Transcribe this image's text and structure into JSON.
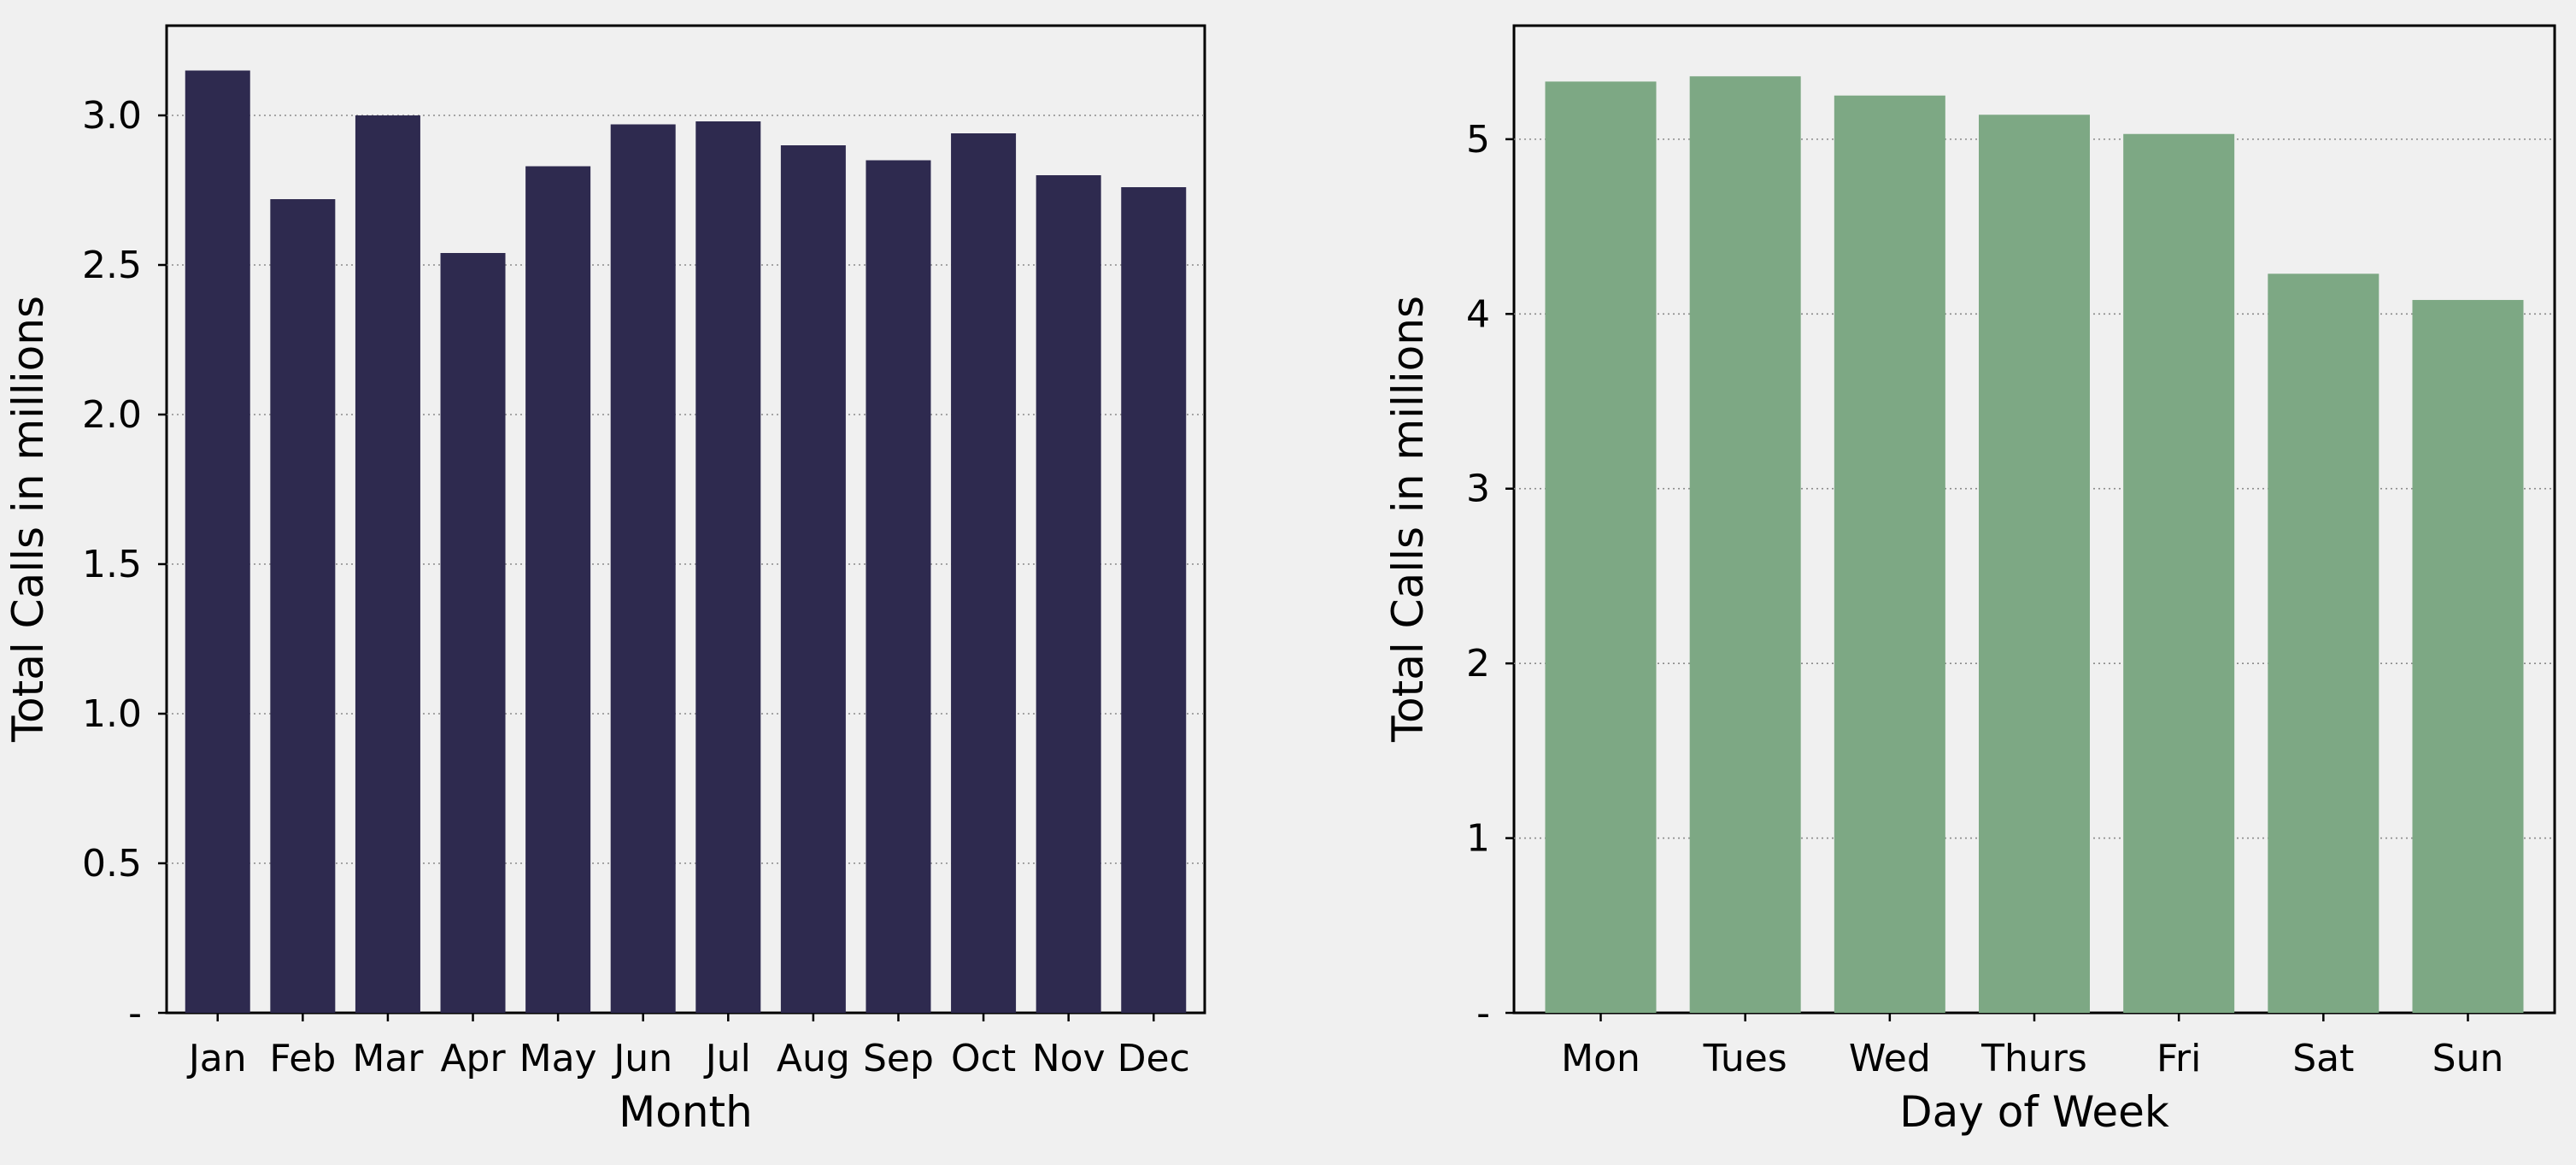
{
  "chart_data": [
    {
      "type": "bar",
      "categories": [
        "Jan",
        "Feb",
        "Mar",
        "Apr",
        "May",
        "Jun",
        "Jul",
        "Aug",
        "Sep",
        "Oct",
        "Nov",
        "Dec"
      ],
      "values": [
        3.15,
        2.72,
        3.0,
        2.54,
        2.83,
        2.97,
        2.98,
        2.9,
        2.85,
        2.94,
        2.8,
        2.76
      ],
      "xlabel": "Month",
      "ylabel": "Total Calls in millions",
      "ylim": [
        0,
        3.3
      ],
      "yticks": [
        0,
        0.5,
        1.0,
        1.5,
        2.0,
        2.5,
        3.0
      ],
      "ytick_labels": [
        "-",
        "0.5",
        "1.0",
        "1.5",
        "2.0",
        "2.5",
        "3.0"
      ],
      "color": "#2e2a4f",
      "grid": "horizontal dotted"
    },
    {
      "type": "bar",
      "categories": [
        "Mon",
        "Tues",
        "Wed",
        "Thurs",
        "Fri",
        "Sat",
        "Sun"
      ],
      "values": [
        5.33,
        5.36,
        5.25,
        5.14,
        5.03,
        4.23,
        4.08
      ],
      "xlabel": "Day of Week",
      "ylabel": "Total Calls in millions",
      "ylim": [
        0,
        5.65
      ],
      "yticks": [
        0,
        1,
        2,
        3,
        4,
        5
      ],
      "ytick_labels": [
        "-",
        "1",
        "2",
        "3",
        "4",
        "5"
      ],
      "color": "#7da884",
      "grid": "horizontal dotted"
    }
  ]
}
